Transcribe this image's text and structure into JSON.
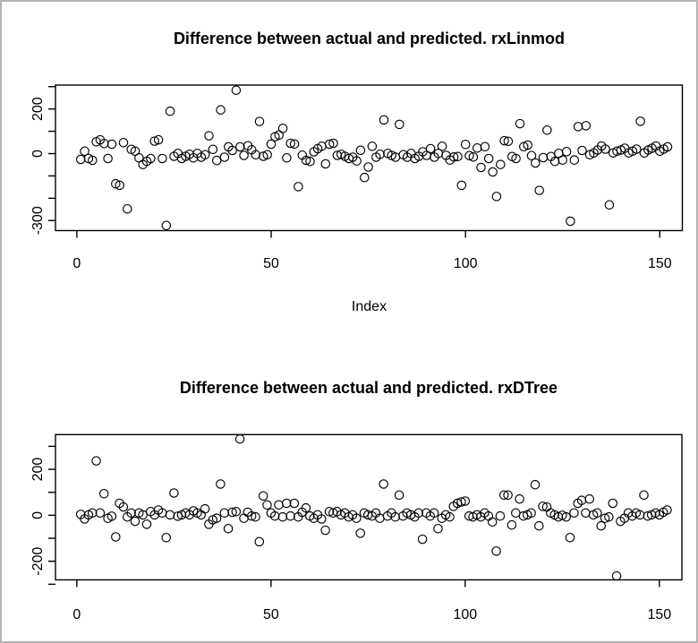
{
  "frame": {
    "background": "#ffffff",
    "border_color": "#b4b4b4",
    "foreground": "#000000"
  },
  "chart_data": [
    {
      "id": "rxLinmod",
      "type": "scatter",
      "title": "Difference between actual and predicted. rxLinmod",
      "xlabel": "Index",
      "ylabel": "",
      "marker": "open-circle",
      "point_color": "#000000",
      "grid": false,
      "legend": "none",
      "xlim": [
        -5.5,
        155.8
      ],
      "ylim": [
        -345,
        307
      ],
      "x_ticks": [
        0,
        50,
        100,
        150
      ],
      "y_ticks": [
        300,
        200,
        100,
        0,
        -100,
        -200,
        -300
      ],
      "y_tick_labels_shown": [
        "200",
        "0",
        "-300"
      ],
      "x": [
        1,
        2,
        3,
        4,
        5,
        6,
        7,
        8,
        9,
        10,
        11,
        12,
        13,
        14,
        15,
        16,
        17,
        18,
        19,
        20,
        21,
        22,
        23,
        24,
        25,
        26,
        27,
        28,
        29,
        30,
        31,
        32,
        33,
        34,
        35,
        36,
        37,
        38,
        39,
        40,
        41,
        42,
        43,
        44,
        45,
        46,
        47,
        48,
        49,
        50,
        51,
        52,
        53,
        54,
        55,
        56,
        57,
        58,
        59,
        60,
        61,
        62,
        63,
        64,
        65,
        66,
        67,
        68,
        69,
        70,
        71,
        72,
        73,
        74,
        75,
        76,
        77,
        78,
        79,
        80,
        81,
        82,
        83,
        84,
        85,
        86,
        87,
        88,
        89,
        90,
        91,
        92,
        93,
        94,
        95,
        96,
        97,
        98,
        99,
        100,
        101,
        102,
        103,
        104,
        105,
        106,
        107,
        108,
        109,
        110,
        111,
        112,
        113,
        114,
        115,
        116,
        117,
        118,
        119,
        120,
        121,
        122,
        123,
        124,
        125,
        126,
        127,
        128,
        129,
        130,
        131,
        132,
        133,
        134,
        135,
        136,
        137,
        138,
        139,
        140,
        141,
        142,
        143,
        144,
        145,
        146,
        147,
        148,
        149,
        150,
        151,
        152
      ],
      "y": [
        -26,
        11,
        -22,
        -30,
        53,
        62,
        45,
        -22,
        42,
        -135,
        -142,
        49,
        -248,
        19,
        11,
        -19,
        -49,
        -35,
        -22,
        56,
        62,
        -22,
        -322,
        190,
        -12,
        1,
        -22,
        -12,
        -3,
        -19,
        1,
        -16,
        -5,
        80,
        19,
        -31,
        196,
        -16,
        30,
        14,
        284,
        30,
        -8,
        35,
        17,
        -5,
        144,
        -12,
        -5,
        42,
        76,
        83,
        113,
        -19,
        46,
        43,
        -148,
        -7,
        -30,
        -35,
        8,
        22,
        33,
        -46,
        42,
        46,
        -8,
        -3,
        -12,
        -22,
        -16,
        -33,
        15,
        -107,
        -60,
        33,
        -16,
        -3,
        151,
        1,
        -8,
        -16,
        131,
        -5,
        -16,
        1,
        -22,
        -12,
        8,
        -8,
        22,
        -16,
        1,
        33,
        -8,
        -29,
        -15,
        -13,
        -142,
        41,
        -9,
        -15,
        25,
        -62,
        31,
        -22,
        -82,
        -192,
        -49,
        58,
        55,
        -13,
        -22,
        134,
        31,
        38,
        -9,
        -42,
        -165,
        -18,
        105,
        -13,
        -35,
        1,
        -29,
        9,
        -303,
        -29,
        121,
        14,
        125,
        -5,
        3,
        16,
        34,
        20,
        -230,
        3,
        11,
        16,
        24,
        3,
        11,
        20,
        145,
        3,
        16,
        24,
        34,
        11,
        20,
        30
      ]
    },
    {
      "id": "rxDTree",
      "type": "scatter",
      "title": "Difference between actual and predicted. rxDTree",
      "xlabel": "",
      "ylabel": "",
      "marker": "open-circle",
      "point_color": "#000000",
      "grid": false,
      "legend": "none",
      "xlim": [
        -5.5,
        155.8
      ],
      "ylim": [
        -281,
        351
      ],
      "x_ticks": [
        0,
        50,
        100,
        150
      ],
      "y_ticks": [
        300,
        200,
        100,
        0,
        -100,
        -200,
        -300
      ],
      "y_tick_labels_shown": [
        "200",
        "0",
        "-200"
      ],
      "x": [
        1,
        2,
        3,
        4,
        5,
        6,
        7,
        8,
        9,
        10,
        11,
        12,
        13,
        14,
        15,
        16,
        17,
        18,
        19,
        20,
        21,
        22,
        23,
        24,
        25,
        26,
        27,
        28,
        29,
        30,
        31,
        32,
        33,
        34,
        35,
        36,
        37,
        38,
        39,
        40,
        41,
        42,
        43,
        44,
        45,
        46,
        47,
        48,
        49,
        50,
        51,
        52,
        53,
        54,
        55,
        56,
        57,
        58,
        59,
        60,
        61,
        62,
        63,
        64,
        65,
        66,
        67,
        68,
        69,
        70,
        71,
        72,
        73,
        74,
        75,
        76,
        77,
        78,
        79,
        80,
        81,
        82,
        83,
        84,
        85,
        86,
        87,
        88,
        89,
        90,
        91,
        92,
        93,
        94,
        95,
        96,
        97,
        98,
        99,
        100,
        101,
        102,
        103,
        104,
        105,
        106,
        107,
        108,
        109,
        110,
        111,
        112,
        113,
        114,
        115,
        116,
        117,
        118,
        119,
        120,
        121,
        122,
        123,
        124,
        125,
        126,
        127,
        128,
        129,
        130,
        131,
        132,
        133,
        134,
        135,
        136,
        137,
        138,
        139,
        140,
        141,
        142,
        143,
        144,
        145,
        146,
        147,
        148,
        149,
        150,
        151,
        152
      ],
      "y": [
        4,
        -16,
        2,
        10,
        237,
        10,
        94,
        -13,
        -4,
        -94,
        52,
        36,
        -7,
        10,
        -26,
        10,
        2,
        -39,
        16,
        2,
        23,
        10,
        -97,
        2,
        97,
        -4,
        2,
        10,
        2,
        19,
        10,
        2,
        28,
        -39,
        -20,
        -13,
        136,
        10,
        -58,
        13,
        16,
        332,
        -13,
        13,
        -3,
        -7,
        -115,
        84,
        45,
        10,
        -3,
        45,
        -7,
        52,
        -3,
        52,
        -7,
        13,
        32,
        -3,
        -13,
        2,
        -16,
        -65,
        16,
        10,
        16,
        2,
        10,
        -7,
        2,
        -13,
        -78,
        10,
        2,
        -3,
        10,
        -13,
        136,
        -3,
        10,
        -7,
        88,
        -3,
        10,
        2,
        -7,
        10,
        -104,
        10,
        -3,
        10,
        -58,
        -13,
        2,
        -7,
        39,
        52,
        58,
        62,
        -3,
        -7,
        2,
        -7,
        10,
        -3,
        -29,
        -156,
        -3,
        88,
        88,
        -42,
        10,
        71,
        -3,
        2,
        10,
        133,
        -46,
        39,
        36,
        10,
        2,
        -7,
        0,
        -7,
        -97,
        10,
        52,
        65,
        10,
        71,
        2,
        10,
        -46,
        -13,
        -7,
        52,
        -264,
        -26,
        -13,
        10,
        -3,
        10,
        2,
        88,
        -3,
        2,
        10,
        2,
        13,
        23
      ]
    }
  ]
}
